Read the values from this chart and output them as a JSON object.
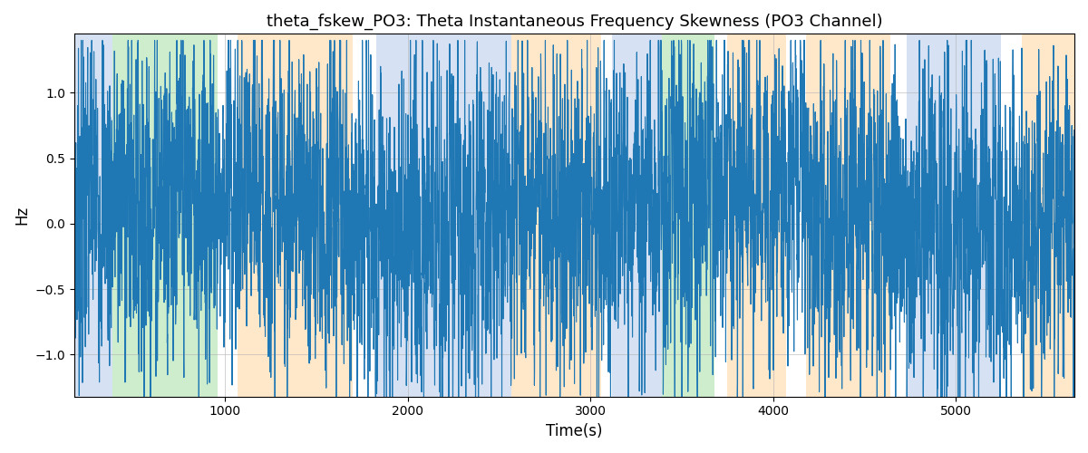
{
  "title": "theta_fskew_PO3: Theta Instantaneous Frequency Skewness (PO3 Channel)",
  "xlabel": "Time(s)",
  "ylabel": "Hz",
  "xlim": [
    175,
    5650
  ],
  "ylim": [
    -1.32,
    1.45
  ],
  "line_color": "#1f77b4",
  "line_width": 0.8,
  "bg_color": "#ffffff",
  "grid_color": "#b0b0b0",
  "bands": [
    {
      "xmin": 175,
      "xmax": 385,
      "color": "#aec6e8",
      "alpha": 0.5
    },
    {
      "xmin": 385,
      "xmax": 960,
      "color": "#90d890",
      "alpha": 0.45
    },
    {
      "xmin": 1070,
      "xmax": 1700,
      "color": "#ffd59e",
      "alpha": 0.55
    },
    {
      "xmin": 1830,
      "xmax": 2570,
      "color": "#aec6e8",
      "alpha": 0.5
    },
    {
      "xmin": 2570,
      "xmax": 3060,
      "color": "#ffd59e",
      "alpha": 0.55
    },
    {
      "xmin": 3120,
      "xmax": 3390,
      "color": "#aec6e8",
      "alpha": 0.5
    },
    {
      "xmin": 3390,
      "xmax": 3680,
      "color": "#90d890",
      "alpha": 0.45
    },
    {
      "xmin": 3750,
      "xmax": 4070,
      "color": "#ffd59e",
      "alpha": 0.55
    },
    {
      "xmin": 4180,
      "xmax": 4640,
      "color": "#ffd59e",
      "alpha": 0.55
    },
    {
      "xmin": 4730,
      "xmax": 5060,
      "color": "#aec6e8",
      "alpha": 0.5
    },
    {
      "xmin": 5060,
      "xmax": 5250,
      "color": "#aec6e8",
      "alpha": 0.5
    },
    {
      "xmin": 5360,
      "xmax": 5650,
      "color": "#ffd59e",
      "alpha": 0.55
    }
  ],
  "seed": 7,
  "n_points": 5500,
  "x_start": 175,
  "x_end": 5650,
  "yticks": [
    -1.0,
    -0.5,
    0.0,
    0.5,
    1.0
  ],
  "xticks": [
    1000,
    2000,
    3000,
    4000,
    5000
  ],
  "title_fontsize": 13
}
